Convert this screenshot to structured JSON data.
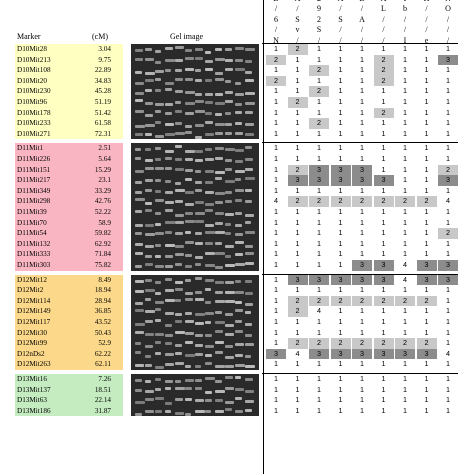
{
  "header": {
    "marker_label": "Marker",
    "cm_label": "(cM)",
    "gel_label": "Gel image"
  },
  "strain_header_rows": [
    [
      "B",
      "A",
      "2",
      "A",
      "B",
      "A",
      "I",
      "H",
      "N"
    ],
    [
      "/",
      "/",
      "9",
      "/",
      "/",
      "L",
      "b",
      "/",
      "O"
    ],
    [
      "6",
      "S",
      "2",
      "S",
      "A",
      "/",
      "/",
      "/",
      "/"
    ],
    [
      "/",
      "v",
      "S",
      "/",
      "/",
      "/",
      "/",
      "/",
      "/"
    ],
    [
      "N",
      "/",
      "/",
      "/",
      "/",
      "/",
      "I",
      "e",
      "/"
    ],
    [
      "/",
      "/",
      "/",
      "/",
      "/",
      "C",
      "/",
      "/",
      "N"
    ],
    [
      "J",
      "/",
      "/",
      "/",
      "J",
      "/",
      "C",
      "e",
      "O"
    ]
  ],
  "chromosome_groups": [
    {
      "color": "#ffffc2",
      "markers": [
        {
          "name": "D10Mit28",
          "cm": "3.04",
          "values": [
            "1",
            "2",
            "1",
            "1",
            "1",
            "1",
            "1",
            "1",
            "1"
          ]
        },
        {
          "name": "D10Mit213",
          "cm": "9.75",
          "values": [
            "2",
            "1",
            "1",
            "1",
            "1",
            "2",
            "1",
            "1",
            "3"
          ]
        },
        {
          "name": "D10Mit108",
          "cm": "22.89",
          "values": [
            "1",
            "1",
            "2",
            "1",
            "1",
            "2",
            "1",
            "1",
            "1"
          ]
        },
        {
          "name": "D10Mit20",
          "cm": "34.83",
          "values": [
            "2",
            "1",
            "1",
            "1",
            "1",
            "2",
            "1",
            "1",
            "1"
          ]
        },
        {
          "name": "D10Mit230",
          "cm": "45.28",
          "values": [
            "1",
            "1",
            "2",
            "1",
            "1",
            "1",
            "1",
            "1",
            "1"
          ]
        },
        {
          "name": "D10Mit96",
          "cm": "51.19",
          "values": [
            "1",
            "2",
            "1",
            "1",
            "1",
            "1",
            "1",
            "1",
            "1"
          ]
        },
        {
          "name": "D10Mit178",
          "cm": "51.42",
          "values": [
            "1",
            "1",
            "1",
            "1",
            "1",
            "2",
            "1",
            "1",
            "1"
          ]
        },
        {
          "name": "D10Mit233",
          "cm": "61.58",
          "values": [
            "1",
            "1",
            "2",
            "1",
            "1",
            "1",
            "1",
            "1",
            "1"
          ]
        },
        {
          "name": "D10Mit271",
          "cm": "72.31",
          "values": [
            "1",
            "1",
            "1",
            "1",
            "1",
            "1",
            "1",
            "1",
            "1"
          ]
        }
      ]
    },
    {
      "color": "#f9b6c2",
      "markers": [
        {
          "name": "D11Mit1",
          "cm": "2.51",
          "values": [
            "1",
            "1",
            "1",
            "1",
            "1",
            "1",
            "1",
            "1",
            "1"
          ]
        },
        {
          "name": "D11Mit226",
          "cm": "5.64",
          "values": [
            "1",
            "1",
            "1",
            "1",
            "1",
            "1",
            "1",
            "1",
            "1"
          ]
        },
        {
          "name": "D11Mit151",
          "cm": "15.29",
          "values": [
            "1",
            "2",
            "3",
            "3",
            "3",
            "1",
            "1",
            "1",
            "2"
          ]
        },
        {
          "name": "D11Mit217",
          "cm": "23.1",
          "values": [
            "1",
            "3",
            "3",
            "3",
            "3",
            "3",
            "1",
            "1",
            "3"
          ]
        },
        {
          "name": "D11Mit349",
          "cm": "33.29",
          "values": [
            "1",
            "1",
            "1",
            "1",
            "1",
            "1",
            "1",
            "1",
            "1"
          ]
        },
        {
          "name": "D11Mit298",
          "cm": "42.76",
          "values": [
            "4",
            "2",
            "2",
            "2",
            "2",
            "2",
            "2",
            "2",
            "4"
          ]
        },
        {
          "name": "D11Mit39",
          "cm": "52.22",
          "values": [
            "1",
            "1",
            "1",
            "1",
            "1",
            "1",
            "1",
            "1",
            "1"
          ]
        },
        {
          "name": "D11Mit70",
          "cm": "58.9",
          "values": [
            "1",
            "1",
            "1",
            "1",
            "1",
            "1",
            "1",
            "1",
            "1"
          ]
        },
        {
          "name": "D11Mit54",
          "cm": "59.82",
          "values": [
            "1",
            "1",
            "1",
            "1",
            "1",
            "1",
            "1",
            "1",
            "2"
          ]
        },
        {
          "name": "D11Mit132",
          "cm": "62.92",
          "values": [
            "1",
            "1",
            "1",
            "1",
            "1",
            "1",
            "1",
            "1",
            "1"
          ]
        },
        {
          "name": "D11Mit333",
          "cm": "71.84",
          "values": [
            "1",
            "1",
            "1",
            "1",
            "1",
            "1",
            "1",
            "1",
            "1"
          ]
        },
        {
          "name": "D11Mit303",
          "cm": "75.82",
          "values": [
            "1",
            "1",
            "1",
            "1",
            "3",
            "3",
            "4",
            "3",
            "3"
          ]
        }
      ]
    },
    {
      "color": "#fcd98a",
      "markers": [
        {
          "name": "D12Mit12",
          "cm": "8.49",
          "values": [
            "1",
            "3",
            "3",
            "3",
            "3",
            "3",
            "4",
            "3",
            "3"
          ]
        },
        {
          "name": "D12Mit2",
          "cm": "18.94",
          "values": [
            "1",
            "1",
            "1",
            "1",
            "1",
            "1",
            "1",
            "1",
            "1"
          ]
        },
        {
          "name": "D12Mit114",
          "cm": "28.94",
          "values": [
            "1",
            "2",
            "2",
            "2",
            "2",
            "2",
            "2",
            "2",
            "1"
          ]
        },
        {
          "name": "D12Mit149",
          "cm": "36.85",
          "values": [
            "1",
            "2",
            "4",
            "1",
            "1",
            "1",
            "1",
            "1",
            "1"
          ]
        },
        {
          "name": "D12Mit117",
          "cm": "43.52",
          "values": [
            "1",
            "1",
            "1",
            "1",
            "1",
            "1",
            "1",
            "1",
            "1"
          ]
        },
        {
          "name": "D12Mit30",
          "cm": "50.43",
          "values": [
            "1",
            "1",
            "1",
            "1",
            "1",
            "1",
            "1",
            "1",
            "1"
          ]
        },
        {
          "name": "D12Mit99",
          "cm": "52.9",
          "values": [
            "1",
            "2",
            "2",
            "2",
            "2",
            "2",
            "2",
            "2",
            "1"
          ]
        },
        {
          "name": "D12nDs2",
          "cm": "62.22",
          "values": [
            "3",
            "4",
            "3",
            "3",
            "3",
            "3",
            "3",
            "3",
            "4"
          ]
        },
        {
          "name": "D12Mit263",
          "cm": "62.11",
          "values": [
            "1",
            "1",
            "1",
            "1",
            "1",
            "1",
            "1",
            "1",
            "1"
          ]
        }
      ]
    },
    {
      "color": "#c4ecc0",
      "markers": [
        {
          "name": "D13Mit16",
          "cm": "7.26",
          "values": [
            "1",
            "1",
            "1",
            "1",
            "1",
            "1",
            "1",
            "1",
            "1"
          ]
        },
        {
          "name": "D13Mit137",
          "cm": "18.51",
          "values": [
            "1",
            "1",
            "1",
            "1",
            "1",
            "1",
            "1",
            "1",
            "1"
          ]
        },
        {
          "name": "D13Mit63",
          "cm": "22.14",
          "values": [
            "1",
            "1",
            "1",
            "1",
            "1",
            "1",
            "1",
            "1",
            "1"
          ]
        },
        {
          "name": "D13Mit186",
          "cm": "31.87",
          "values": [
            "1",
            "1",
            "1",
            "1",
            "1",
            "1",
            "1",
            "1",
            "1"
          ]
        }
      ]
    }
  ],
  "colors": {
    "value_1": "#ffffff",
    "value_2": "#c8c8c8",
    "value_3": "#8c8c8c",
    "value_4": "#ffffff",
    "gel_background": "#2a2a2a",
    "gel_band": "#bdbdbd"
  }
}
